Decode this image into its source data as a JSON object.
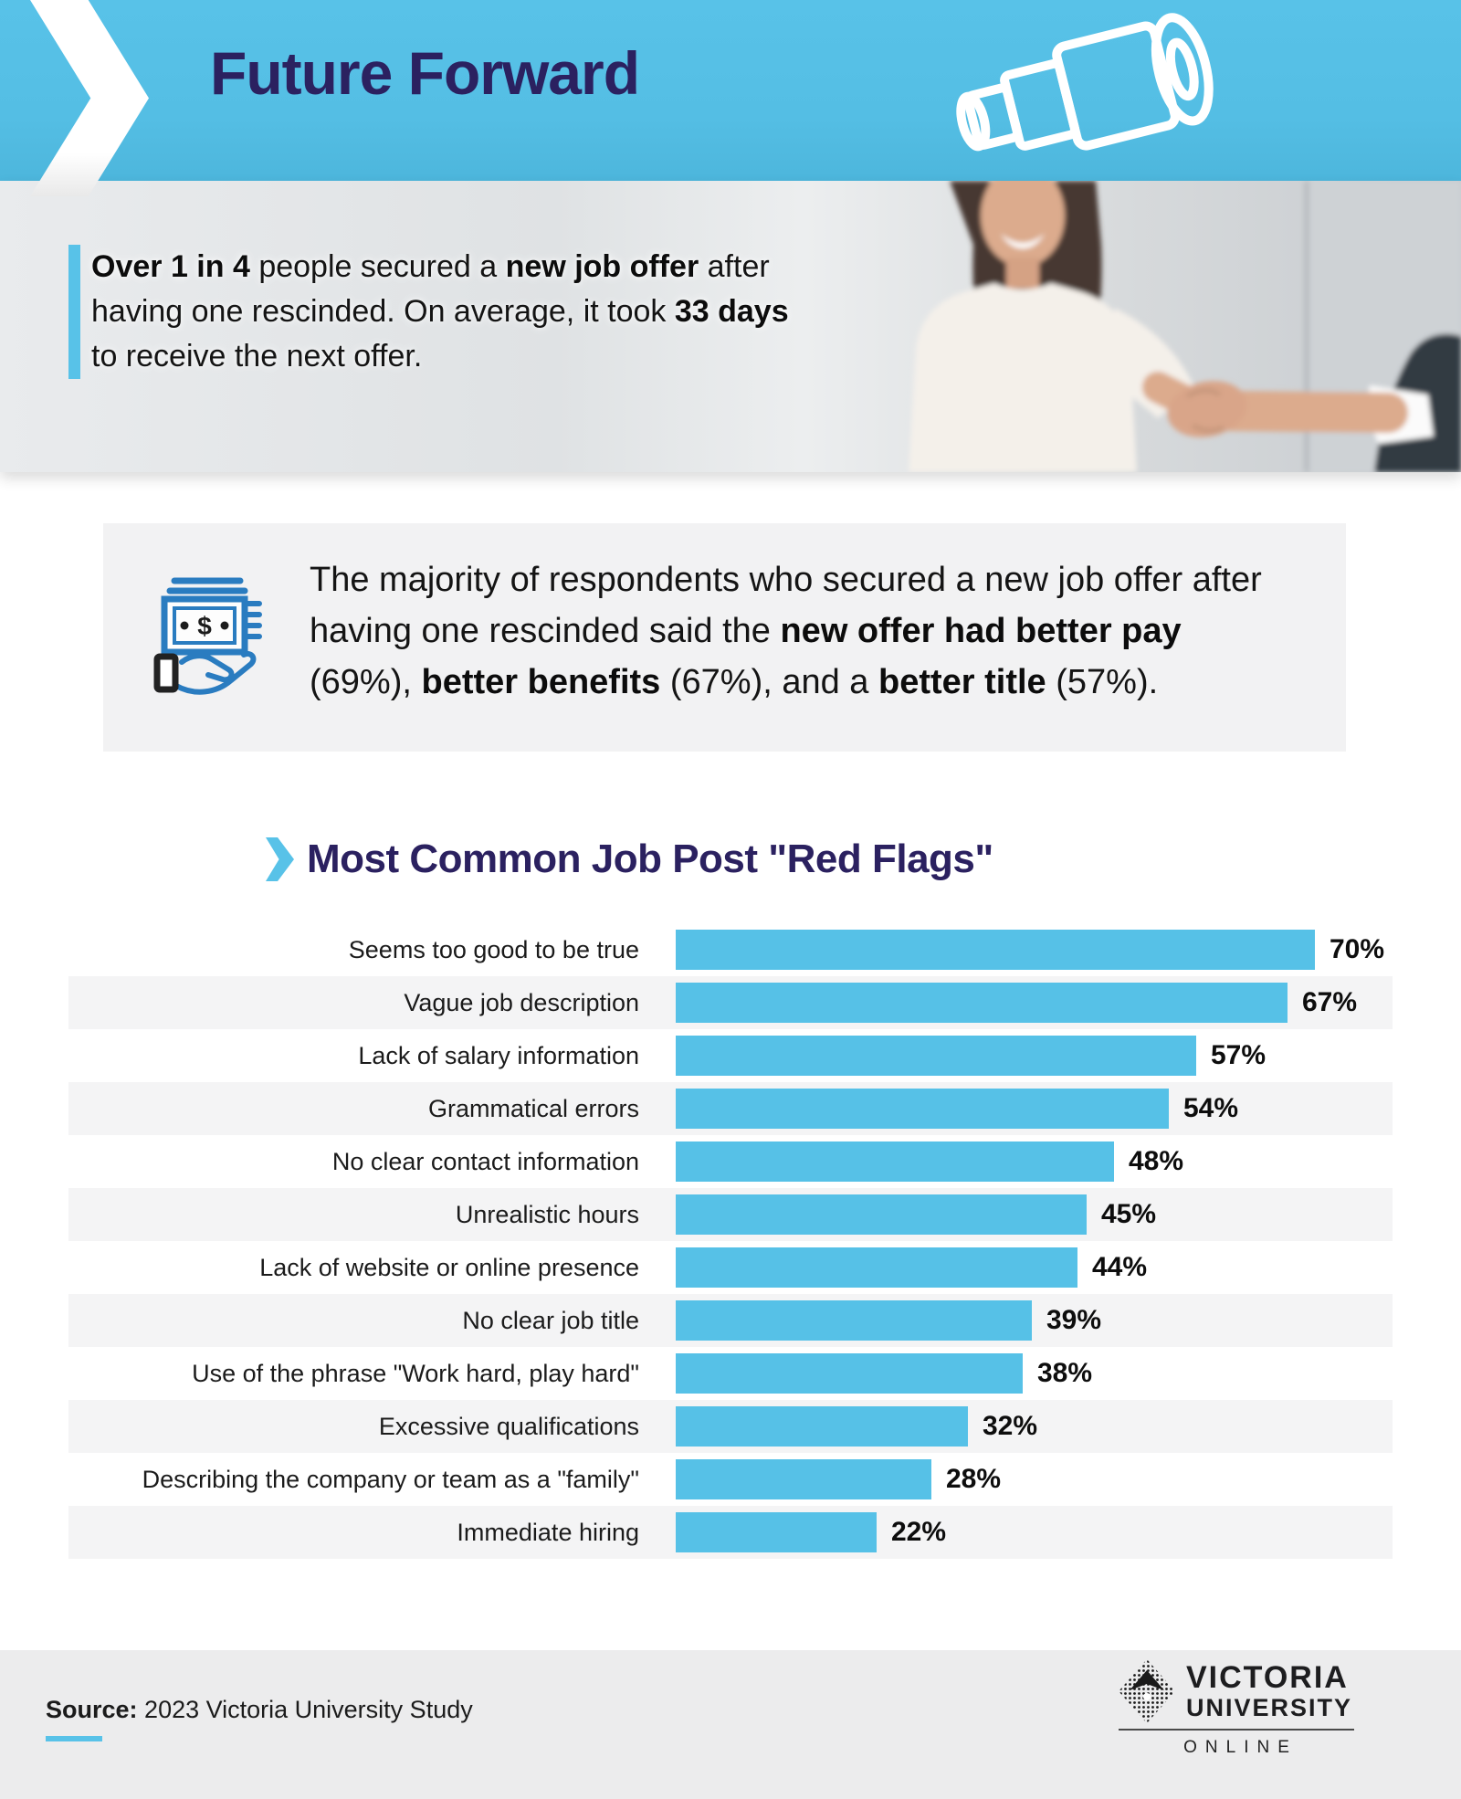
{
  "header": {
    "title": "Future Forward"
  },
  "hero": {
    "quote": {
      "seg1_bold": "Over 1 in 4",
      "seg2": " people secured a ",
      "seg3_bold": "new job offer",
      "seg4": " after having one rescinded. On average, it took ",
      "seg5_bold": "33 days",
      "seg6": " to receive the next offer."
    }
  },
  "highlight_box": {
    "seg1": "The majority of respondents who secured a new job offer after having one rescinded said the ",
    "seg2_bold": "new offer had better pay",
    "seg3": " (69%), ",
    "seg4_bold": "better benefits",
    "seg5": " (67%), and a ",
    "seg6_bold": "better title",
    "seg7": " (57%)."
  },
  "chart_data": {
    "type": "bar",
    "orientation": "horizontal",
    "title": "Most Common Job Post \"Red Flags\"",
    "categories": [
      "Seems too good to be true",
      "Vague job description",
      "Lack of salary information",
      "Grammatical errors",
      "No clear contact information",
      "Unrealistic hours",
      "Lack of website or online presence",
      "No clear job title",
      "Use of the phrase \"Work hard, play hard\"",
      "Excessive qualifications",
      "Describing the company or team as a \"family\"",
      "Immediate hiring"
    ],
    "values": [
      70,
      67,
      57,
      54,
      48,
      45,
      44,
      39,
      38,
      32,
      28,
      22
    ],
    "unit": "%",
    "xlim": [
      0,
      70
    ],
    "grid": false,
    "legend": false,
    "bar_color": "#56c1e7",
    "value_labels": "end-of-bar",
    "row_stripe_color": "#f4f4f5"
  },
  "footer": {
    "source_label": "Source:",
    "source_text": "2023 Victoria University Study",
    "logo": {
      "line1": "VICTORIA",
      "line2": "UNIVERSITY",
      "line3": "ONLINE"
    }
  },
  "icons": {
    "header_chevron": "chevron-right-icon",
    "telescope": "telescope-icon",
    "money": "money-in-hand-icon",
    "title_chevron": "chevron-right-icon",
    "logo_diamond": "vu-diamond-logo"
  },
  "colors": {
    "accent_blue": "#56c1e7",
    "header_bg": "#55bfe5",
    "title_navy": "#2b2160",
    "icon_blue": "#2a7cc0",
    "box_bg": "#f2f2f3",
    "row_stripe": "#f4f4f5",
    "footer_bg": "#ececed",
    "text_dark": "#151515"
  }
}
